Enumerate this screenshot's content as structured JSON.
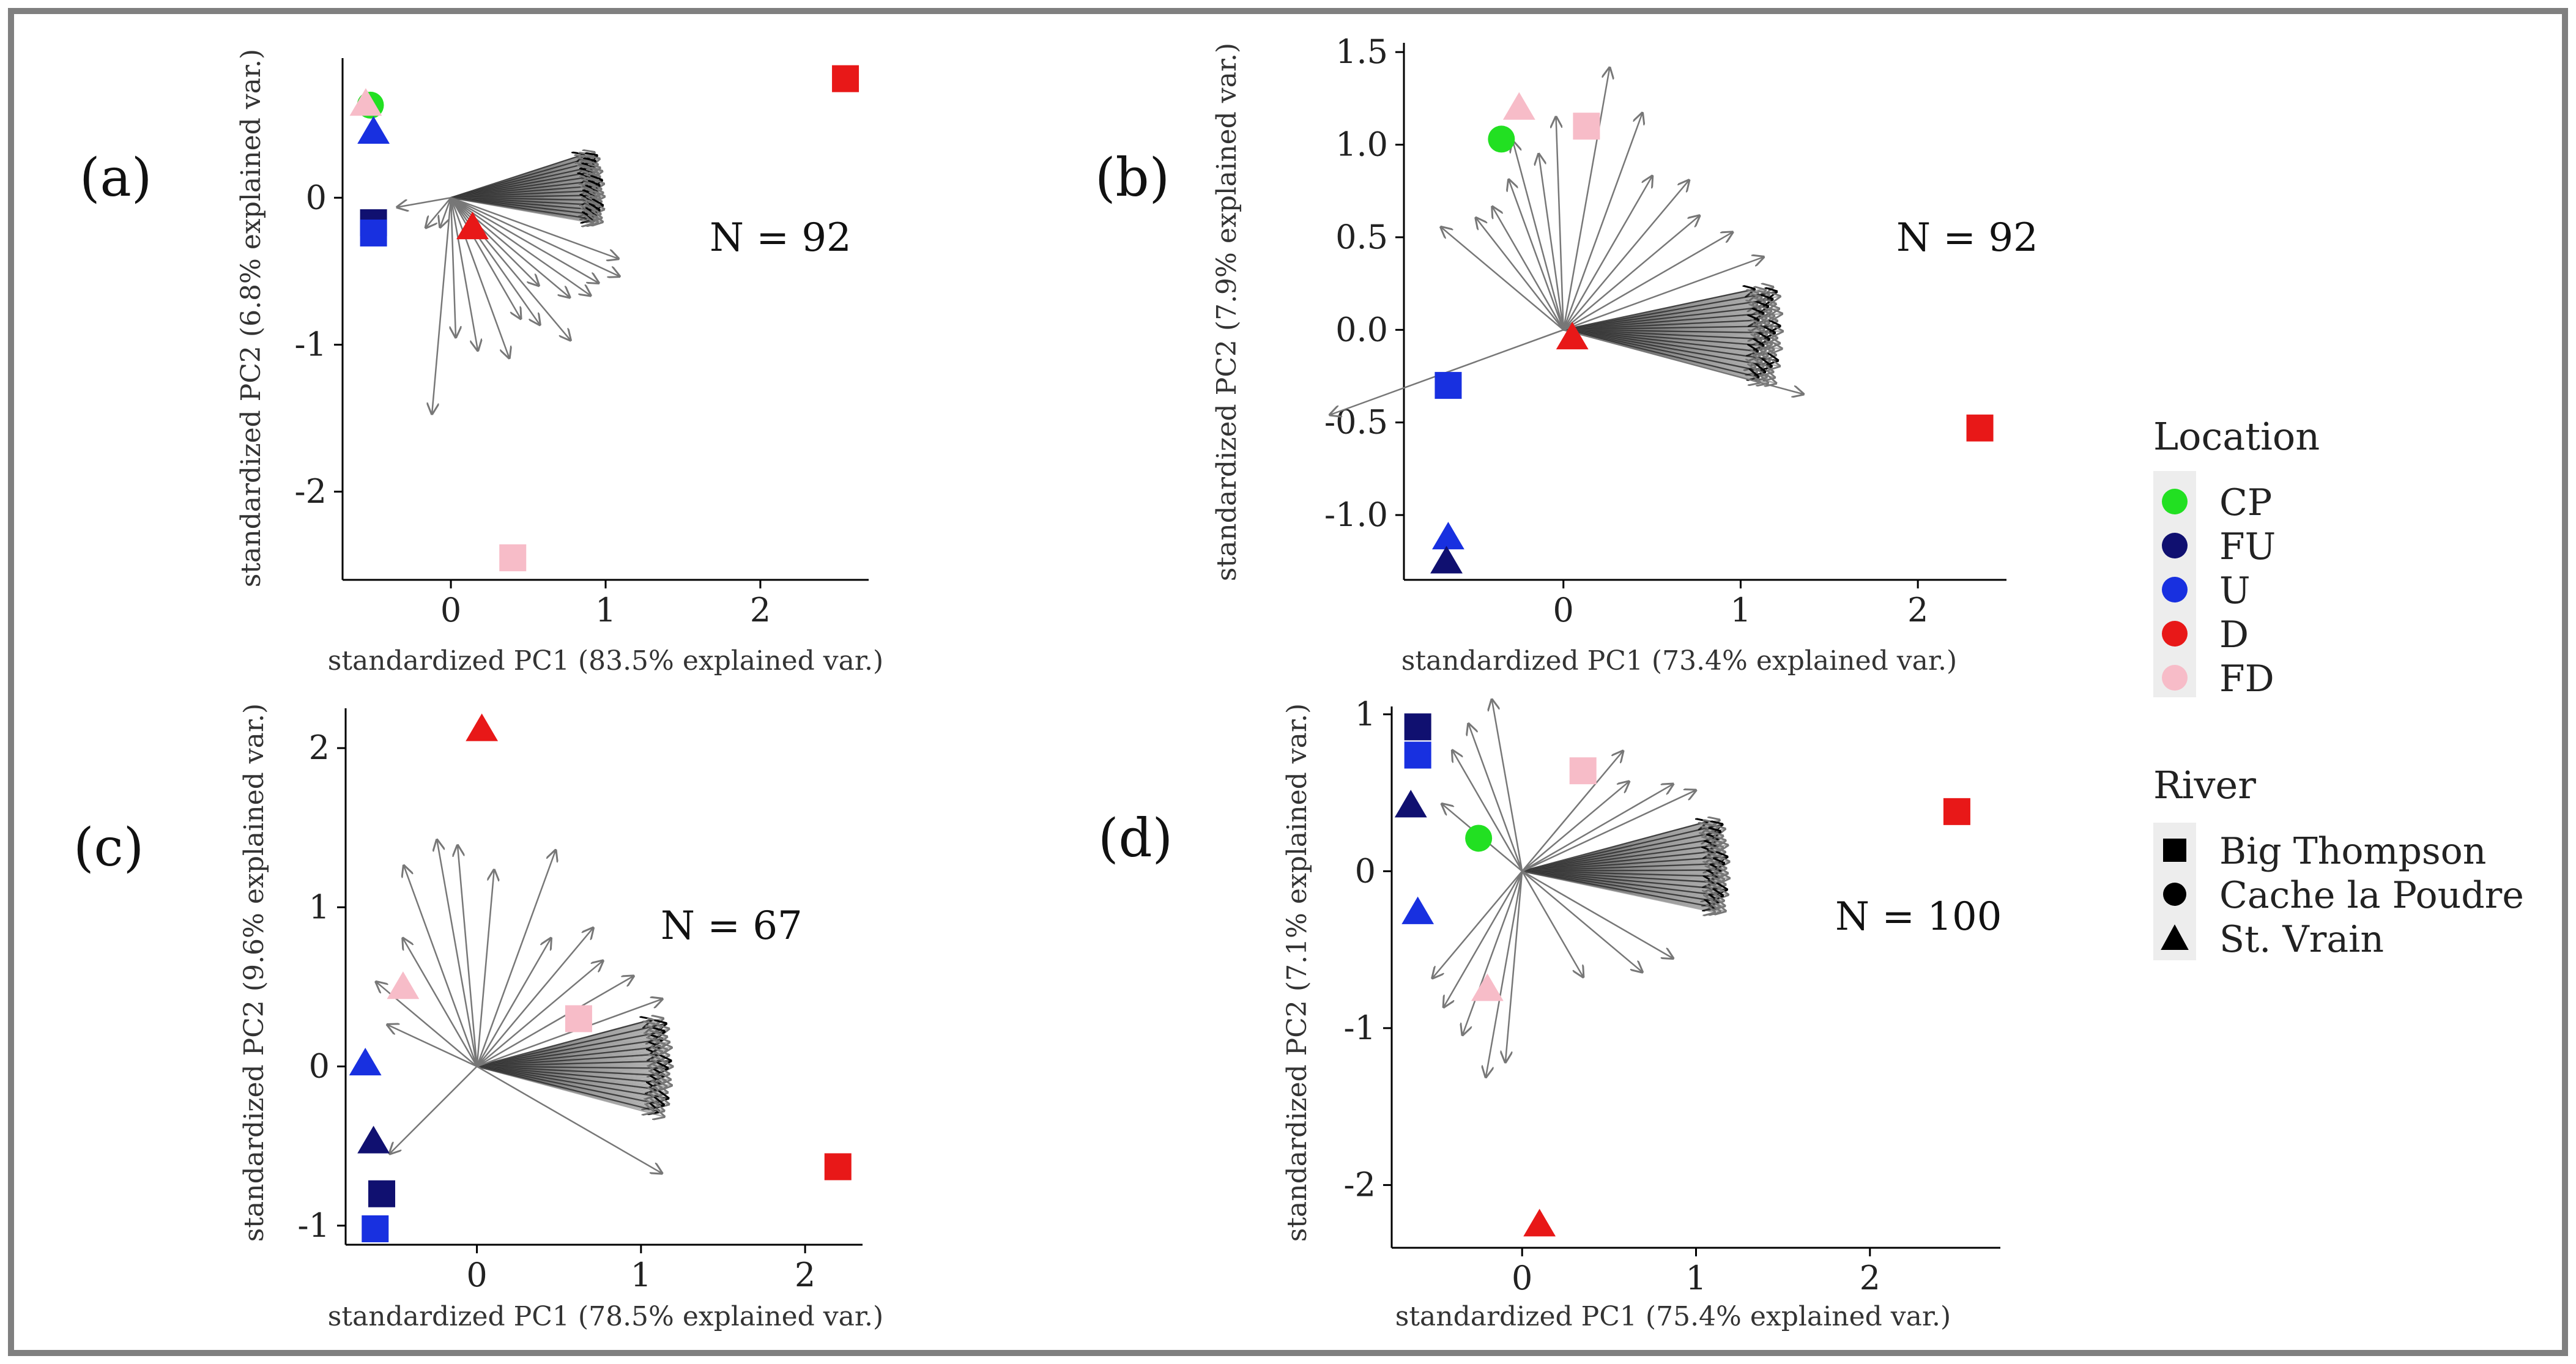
{
  "colors": {
    "CP": "#22e022",
    "FU": "#101070",
    "U": "#1830e0",
    "D": "#e81818",
    "FD": "#f7bcc8",
    "frame": "#808080",
    "axis": "#000000"
  },
  "legend": {
    "location_title": "Location",
    "locations": [
      {
        "label": "CP",
        "color": "#22e022"
      },
      {
        "label": "FU",
        "color": "#101070"
      },
      {
        "label": "U",
        "color": "#1830e0"
      },
      {
        "label": "D",
        "color": "#e81818"
      },
      {
        "label": "FD",
        "color": "#f7bcc8"
      }
    ],
    "river_title": "River",
    "rivers": [
      {
        "label": "Big Thompson",
        "shape": "square"
      },
      {
        "label": "Cache la Poudre",
        "shape": "circle"
      },
      {
        "label": "St. Vrain",
        "shape": "triangle"
      }
    ]
  },
  "chart_data": [
    {
      "type": "scatter",
      "panel_label": "(a)",
      "annotation": "N = 92",
      "xlabel": "standardized PC1 (83.5% explained var.)",
      "ylabel": "standardized PC2 (6.8% explained var.)",
      "xlim": [
        -0.7,
        2.7
      ],
      "ylim": [
        -2.6,
        0.95
      ],
      "xticks": [
        "0",
        "1",
        "2"
      ],
      "yticks": [
        "-2",
        "-1",
        "0"
      ],
      "xtick_values": [
        0,
        1,
        2
      ],
      "ytick_values": [
        -2,
        -1,
        0
      ],
      "points": [
        {
          "loc": "CP",
          "river": "circle",
          "x": -0.52,
          "y": 0.63
        },
        {
          "loc": "FD",
          "river": "triangle",
          "x": -0.55,
          "y": 0.64
        },
        {
          "loc": "U",
          "river": "triangle",
          "x": -0.5,
          "y": 0.45
        },
        {
          "loc": "FU",
          "river": "square",
          "x": -0.5,
          "y": -0.17
        },
        {
          "loc": "U",
          "river": "square",
          "x": -0.5,
          "y": -0.24
        },
        {
          "loc": "D",
          "river": "triangle",
          "x": 0.14,
          "y": -0.2
        },
        {
          "loc": "FD",
          "river": "square",
          "x": 0.4,
          "y": -2.45
        },
        {
          "loc": "D",
          "river": "square",
          "x": 2.55,
          "y": 0.81
        }
      ]
    },
    {
      "type": "scatter",
      "panel_label": "(b)",
      "annotation": "N = 92",
      "xlabel": "standardized PC1 (73.4% explained var.)",
      "ylabel": "standardized PC2 (7.9% explained var.)",
      "xlim": [
        -0.9,
        2.5
      ],
      "ylim": [
        -1.35,
        1.55
      ],
      "xticks": [
        "0",
        "1",
        "2"
      ],
      "yticks": [
        "-1.0",
        "-0.5",
        "0.0",
        "0.5",
        "1.0",
        "1.5"
      ],
      "xtick_values": [
        0,
        1,
        2
      ],
      "ytick_values": [
        -1,
        -0.5,
        0,
        0.5,
        1,
        1.5
      ],
      "points": [
        {
          "loc": "FD",
          "river": "triangle",
          "x": -0.25,
          "y": 1.2
        },
        {
          "loc": "FD",
          "river": "square",
          "x": 0.13,
          "y": 1.1
        },
        {
          "loc": "CP",
          "river": "circle",
          "x": -0.35,
          "y": 1.03
        },
        {
          "loc": "D",
          "river": "triangle",
          "x": 0.05,
          "y": -0.04
        },
        {
          "loc": "U",
          "river": "square",
          "x": -0.65,
          "y": -0.3
        },
        {
          "loc": "D",
          "river": "square",
          "x": 2.35,
          "y": -0.53
        },
        {
          "loc": "U",
          "river": "triangle",
          "x": -0.65,
          "y": -1.12
        },
        {
          "loc": "FU",
          "river": "triangle",
          "x": -0.66,
          "y": -1.25
        }
      ]
    },
    {
      "type": "scatter",
      "panel_label": "(c)",
      "annotation": "N = 67",
      "xlabel": "standardized PC1 (78.5% explained var.)",
      "ylabel": "standardized PC2 (9.6% explained var.)",
      "xlim": [
        -0.8,
        2.35
      ],
      "ylim": [
        -1.12,
        2.25
      ],
      "xticks": [
        "0",
        "1",
        "2"
      ],
      "yticks": [
        "-1",
        "0",
        "1",
        "2"
      ],
      "xtick_values": [
        0,
        1,
        2
      ],
      "ytick_values": [
        -1,
        0,
        1,
        2
      ],
      "points": [
        {
          "loc": "D",
          "river": "triangle",
          "x": 0.03,
          "y": 2.12
        },
        {
          "loc": "FD",
          "river": "triangle",
          "x": -0.45,
          "y": 0.5
        },
        {
          "loc": "FD",
          "river": "square",
          "x": 0.62,
          "y": 0.3
        },
        {
          "loc": "U",
          "river": "triangle",
          "x": -0.68,
          "y": 0.02
        },
        {
          "loc": "FU",
          "river": "triangle",
          "x": -0.63,
          "y": -0.47
        },
        {
          "loc": "FU",
          "river": "square",
          "x": -0.58,
          "y": -0.8
        },
        {
          "loc": "U",
          "river": "square",
          "x": -0.62,
          "y": -1.02
        },
        {
          "loc": "D",
          "river": "square",
          "x": 2.2,
          "y": -0.63
        }
      ]
    },
    {
      "type": "scatter",
      "panel_label": "(d)",
      "annotation": "N = 100",
      "xlabel": "standardized PC1 (75.4% explained var.)",
      "ylabel": "standardized PC2 (7.1% explained var.)",
      "xlim": [
        -0.75,
        2.75
      ],
      "ylim": [
        -2.4,
        1.05
      ],
      "xticks": [
        "0",
        "1",
        "2"
      ],
      "yticks": [
        "-2",
        "-1",
        "0",
        "1"
      ],
      "xtick_values": [
        0,
        1,
        2
      ],
      "ytick_values": [
        -2,
        -1,
        0,
        1
      ],
      "points": [
        {
          "loc": "FU",
          "river": "square",
          "x": -0.6,
          "y": 0.92
        },
        {
          "loc": "U",
          "river": "square",
          "x": -0.6,
          "y": 0.74
        },
        {
          "loc": "FU",
          "river": "triangle",
          "x": -0.64,
          "y": 0.42
        },
        {
          "loc": "FD",
          "river": "square",
          "x": 0.35,
          "y": 0.64
        },
        {
          "loc": "CP",
          "river": "circle",
          "x": -0.25,
          "y": 0.21
        },
        {
          "loc": "U",
          "river": "triangle",
          "x": -0.6,
          "y": -0.26
        },
        {
          "loc": "FD",
          "river": "triangle",
          "x": -0.2,
          "y": -0.75
        },
        {
          "loc": "D",
          "river": "square",
          "x": 2.5,
          "y": 0.38
        },
        {
          "loc": "D",
          "river": "triangle",
          "x": 0.1,
          "y": -2.25
        }
      ]
    }
  ]
}
